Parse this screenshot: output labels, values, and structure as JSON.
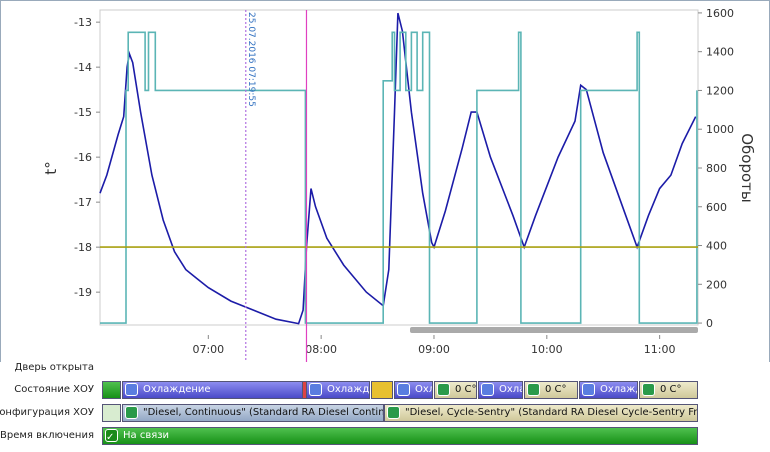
{
  "chart_data": {
    "type": "line",
    "ylabel": "t°",
    "y2label": "Обороты",
    "xlim": [
      6.04,
      11.34
    ],
    "xticks": [
      {
        "value": 7,
        "label": "07:00"
      },
      {
        "value": 8,
        "label": "08:00"
      },
      {
        "value": 9,
        "label": "09:00"
      },
      {
        "value": 10,
        "label": "10:00"
      },
      {
        "value": 11,
        "label": "11:00"
      }
    ],
    "ylim": [
      -19.73,
      -12.73
    ],
    "yticks": [
      -19,
      -18,
      -17,
      -16,
      -15,
      -14,
      -13
    ],
    "y2lim": [
      -10,
      1615
    ],
    "y2ticks": [
      0,
      200,
      400,
      600,
      800,
      1000,
      1200,
      1400,
      1600
    ],
    "markers": [
      {
        "x": 7.332,
        "label": "25.07.2016 07:19:55",
        "color": "#b070e0"
      },
      {
        "x": 7.87,
        "color": "#e040c0"
      }
    ],
    "series": [
      {
        "color": "#1c1ca8",
        "x": [
          6.04,
          6.1,
          6.2,
          6.25,
          6.28,
          6.3,
          6.33,
          6.4,
          6.5,
          6.6,
          6.7,
          6.8,
          6.9,
          7.0,
          7.2,
          7.4,
          7.6,
          7.8,
          7.84,
          7.87,
          7.91,
          7.95,
          8.05,
          8.2,
          8.4,
          8.55,
          8.6,
          8.65,
          8.68,
          8.72,
          8.8,
          8.9,
          8.98,
          9.0,
          9.1,
          9.25,
          9.33,
          9.38,
          9.5,
          9.7,
          9.8,
          9.9,
          10.1,
          10.25,
          10.3,
          10.35,
          10.5,
          10.7,
          10.8,
          10.9,
          11.0,
          11.1,
          11.2,
          11.32
        ],
        "values": [
          -16.8,
          -16.4,
          -15.5,
          -15.1,
          -14.0,
          -13.7,
          -13.9,
          -15.0,
          -16.4,
          -17.4,
          -18.1,
          -18.5,
          -18.7,
          -18.9,
          -19.2,
          -19.4,
          -19.6,
          -19.7,
          -19.4,
          -18.0,
          -16.7,
          -17.1,
          -17.8,
          -18.4,
          -19.0,
          -19.3,
          -18.5,
          -15.0,
          -12.8,
          -13.2,
          -15.0,
          -16.8,
          -17.9,
          -18.0,
          -17.2,
          -15.8,
          -15.0,
          -15.0,
          -16.0,
          -17.3,
          -18.0,
          -17.3,
          -16.0,
          -15.2,
          -14.4,
          -14.5,
          -15.9,
          -17.3,
          -18.0,
          -17.3,
          -16.7,
          -16.4,
          -15.7,
          -15.1
        ]
      },
      {
        "color": "#5bb5b5",
        "axis": "y2",
        "x": [
          6.04,
          6.27,
          6.27,
          6.29,
          6.29,
          6.44,
          6.44,
          6.47,
          6.47,
          6.53,
          6.53,
          7.86,
          7.86,
          8.55,
          8.55,
          8.63,
          8.63,
          8.65,
          8.65,
          8.7,
          8.7,
          8.75,
          8.75,
          8.8,
          8.8,
          8.85,
          8.85,
          8.9,
          8.9,
          8.96,
          8.96,
          9.38,
          9.38,
          9.75,
          9.75,
          9.77,
          9.77,
          10.3,
          10.3,
          10.8,
          10.8,
          10.82,
          10.82,
          11.33,
          11.33
        ],
        "values": [
          0,
          0,
          1200,
          1200,
          1500,
          1500,
          1200,
          1200,
          1500,
          1500,
          1200,
          1200,
          0,
          0,
          1250,
          1250,
          1500,
          1500,
          1200,
          1200,
          1500,
          1500,
          1200,
          1200,
          1500,
          1500,
          1200,
          1200,
          1500,
          1500,
          0,
          0,
          1200,
          1200,
          1500,
          1500,
          0,
          0,
          1200,
          1200,
          1500,
          1500,
          0,
          0,
          1200
        ]
      },
      {
        "color": "#a8a010",
        "x": [
          6.04,
          11.34
        ],
        "values": [
          -18,
          -18
        ]
      }
    ]
  },
  "timeline": {
    "rows": [
      "Дверь открыта",
      "Состояние ХОУ",
      "Конфигурация ХОУ",
      "Время включения"
    ],
    "state": [
      "Охлаждение",
      "Охлажде",
      "Охл",
      "0 C°",
      "Охла",
      "0 C°",
      "Охлажд",
      "0 C°"
    ],
    "config": [
      "\"Diesel, Continuous\" (Standard RA Diesel Continuous",
      "\"Diesel, Cycle-Sentry\" (Standard RA Diesel Cycle-Sentry Frozen Reci"
    ],
    "power": [
      "На связи"
    ]
  }
}
